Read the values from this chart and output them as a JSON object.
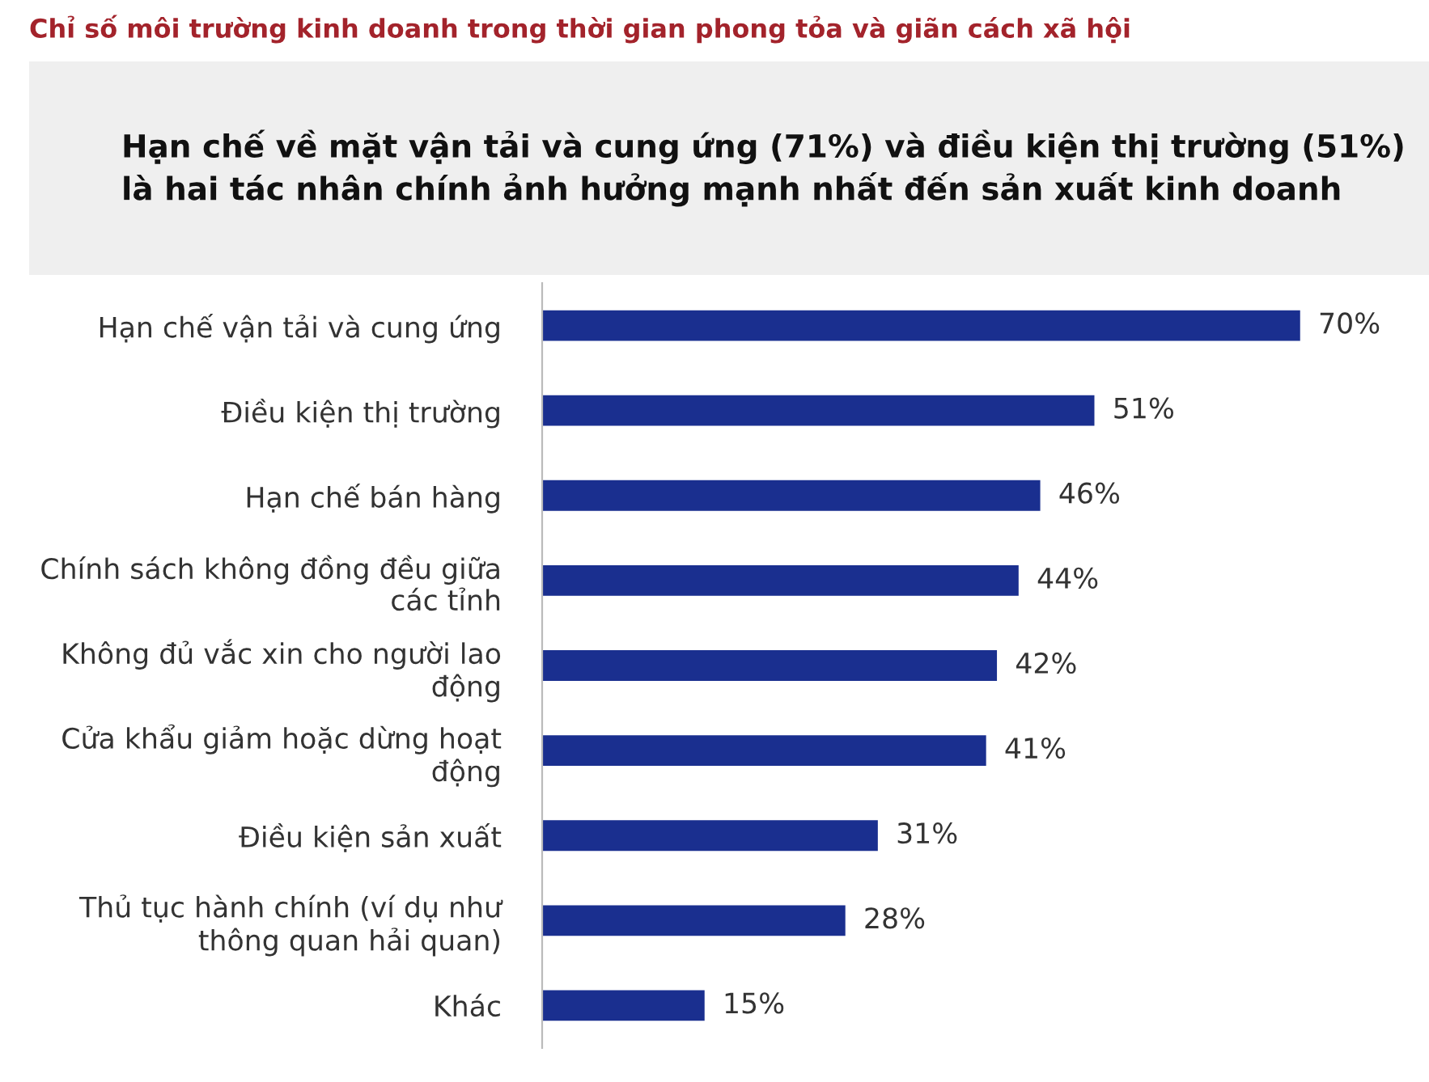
{
  "chart_data": {
    "type": "bar",
    "orientation": "horizontal",
    "title": "Chỉ số môi trường kinh doanh trong thời gian phong tỏa và giãn cách xã hội",
    "subtitle": "Hạn chế về mặt vận tải và cung ứng (71%) và điều kiện thị trường (51%)\nlà hai tác nhân chính ảnh hưởng mạnh nhất đến sản xuất kinh doanh",
    "categories": [
      "Hạn chế vận tải và cung ứng",
      "Điều kiện thị trường",
      "Hạn chế bán hàng",
      "Chính sách không đồng đều giữa\ncác tỉnh",
      "Không đủ vắc xin cho người lao\nđộng",
      "Cửa khẩu giảm hoặc dừng hoạt\nđộng",
      "Điều kiện sản xuất",
      "Thủ tục hành chính (ví dụ như\nthông quan hải quan)",
      "Khác"
    ],
    "values": [
      70,
      51,
      46,
      44,
      42,
      41,
      31,
      28,
      15
    ],
    "value_labels": [
      "70%",
      "51%",
      "46%",
      "44%",
      "42%",
      "41%",
      "31%",
      "28%",
      "15%"
    ],
    "color": "#1a2f8f",
    "tick_labels": "y",
    "grid": false,
    "legend": false
  }
}
